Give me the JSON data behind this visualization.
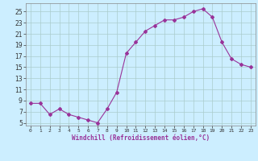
{
  "x": [
    0,
    1,
    2,
    3,
    4,
    5,
    6,
    7,
    8,
    9,
    10,
    11,
    12,
    13,
    14,
    15,
    16,
    17,
    18,
    19,
    20,
    21,
    22,
    23
  ],
  "y": [
    8.5,
    8.5,
    6.5,
    7.5,
    6.5,
    6.0,
    5.5,
    5.0,
    7.5,
    10.5,
    17.5,
    19.5,
    21.5,
    22.5,
    23.5,
    23.5,
    24.0,
    25.0,
    25.5,
    24.0,
    19.5,
    16.5,
    15.5,
    15.0
  ],
  "line_color": "#993399",
  "marker": "D",
  "marker_size": 2,
  "bg_color": "#cceeff",
  "grid_color": "#aacccc",
  "xlabel": "Windchill (Refroidissement éolien,°C)",
  "xlabel_color": "#993399",
  "yticks": [
    5,
    7,
    9,
    11,
    13,
    15,
    17,
    19,
    21,
    23,
    25
  ],
  "ylim": [
    4.5,
    26.5
  ],
  "xlim": [
    -0.5,
    23.5
  ]
}
